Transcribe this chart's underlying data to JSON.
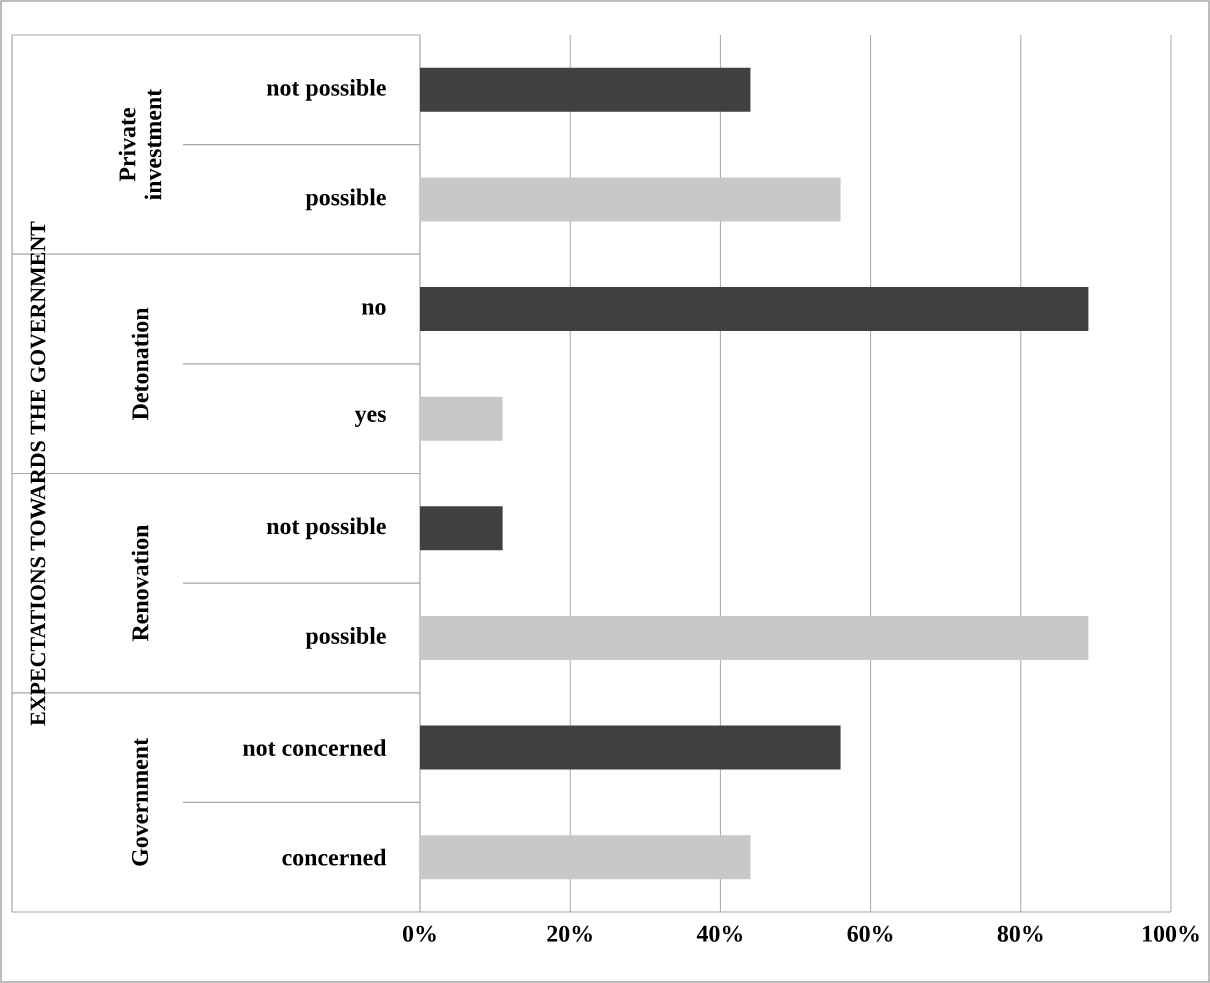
{
  "chart_data": {
    "type": "bar",
    "orientation": "horizontal",
    "categories": [
      "not possible",
      "possible",
      "no",
      "yes",
      "not possible",
      "possible",
      "not concerned",
      "concerned"
    ],
    "values": [
      44,
      56,
      89,
      11,
      11,
      89,
      56,
      44
    ],
    "colors": [
      "#404040",
      "#c8c8c8",
      "#404040",
      "#c8c8c8",
      "#404040",
      "#c8c8c8",
      "#404040",
      "#c8c8c8"
    ],
    "annotations": [
      "EXPECTATIONS TOWARDS THE GOVERNMENT",
      "Private investment",
      "Detonation",
      "Renovation",
      "Government"
    ],
    "xlim": [
      0,
      100
    ],
    "xticks": [
      {
        "value": 0,
        "label": "0%"
      },
      {
        "value": 20,
        "label": "20%"
      },
      {
        "value": 40,
        "label": "40%"
      },
      {
        "value": 60,
        "label": "60%"
      },
      {
        "value": 80,
        "label": "80%"
      },
      {
        "value": 100,
        "label": "100%"
      }
    ],
    "grid": "x"
  }
}
